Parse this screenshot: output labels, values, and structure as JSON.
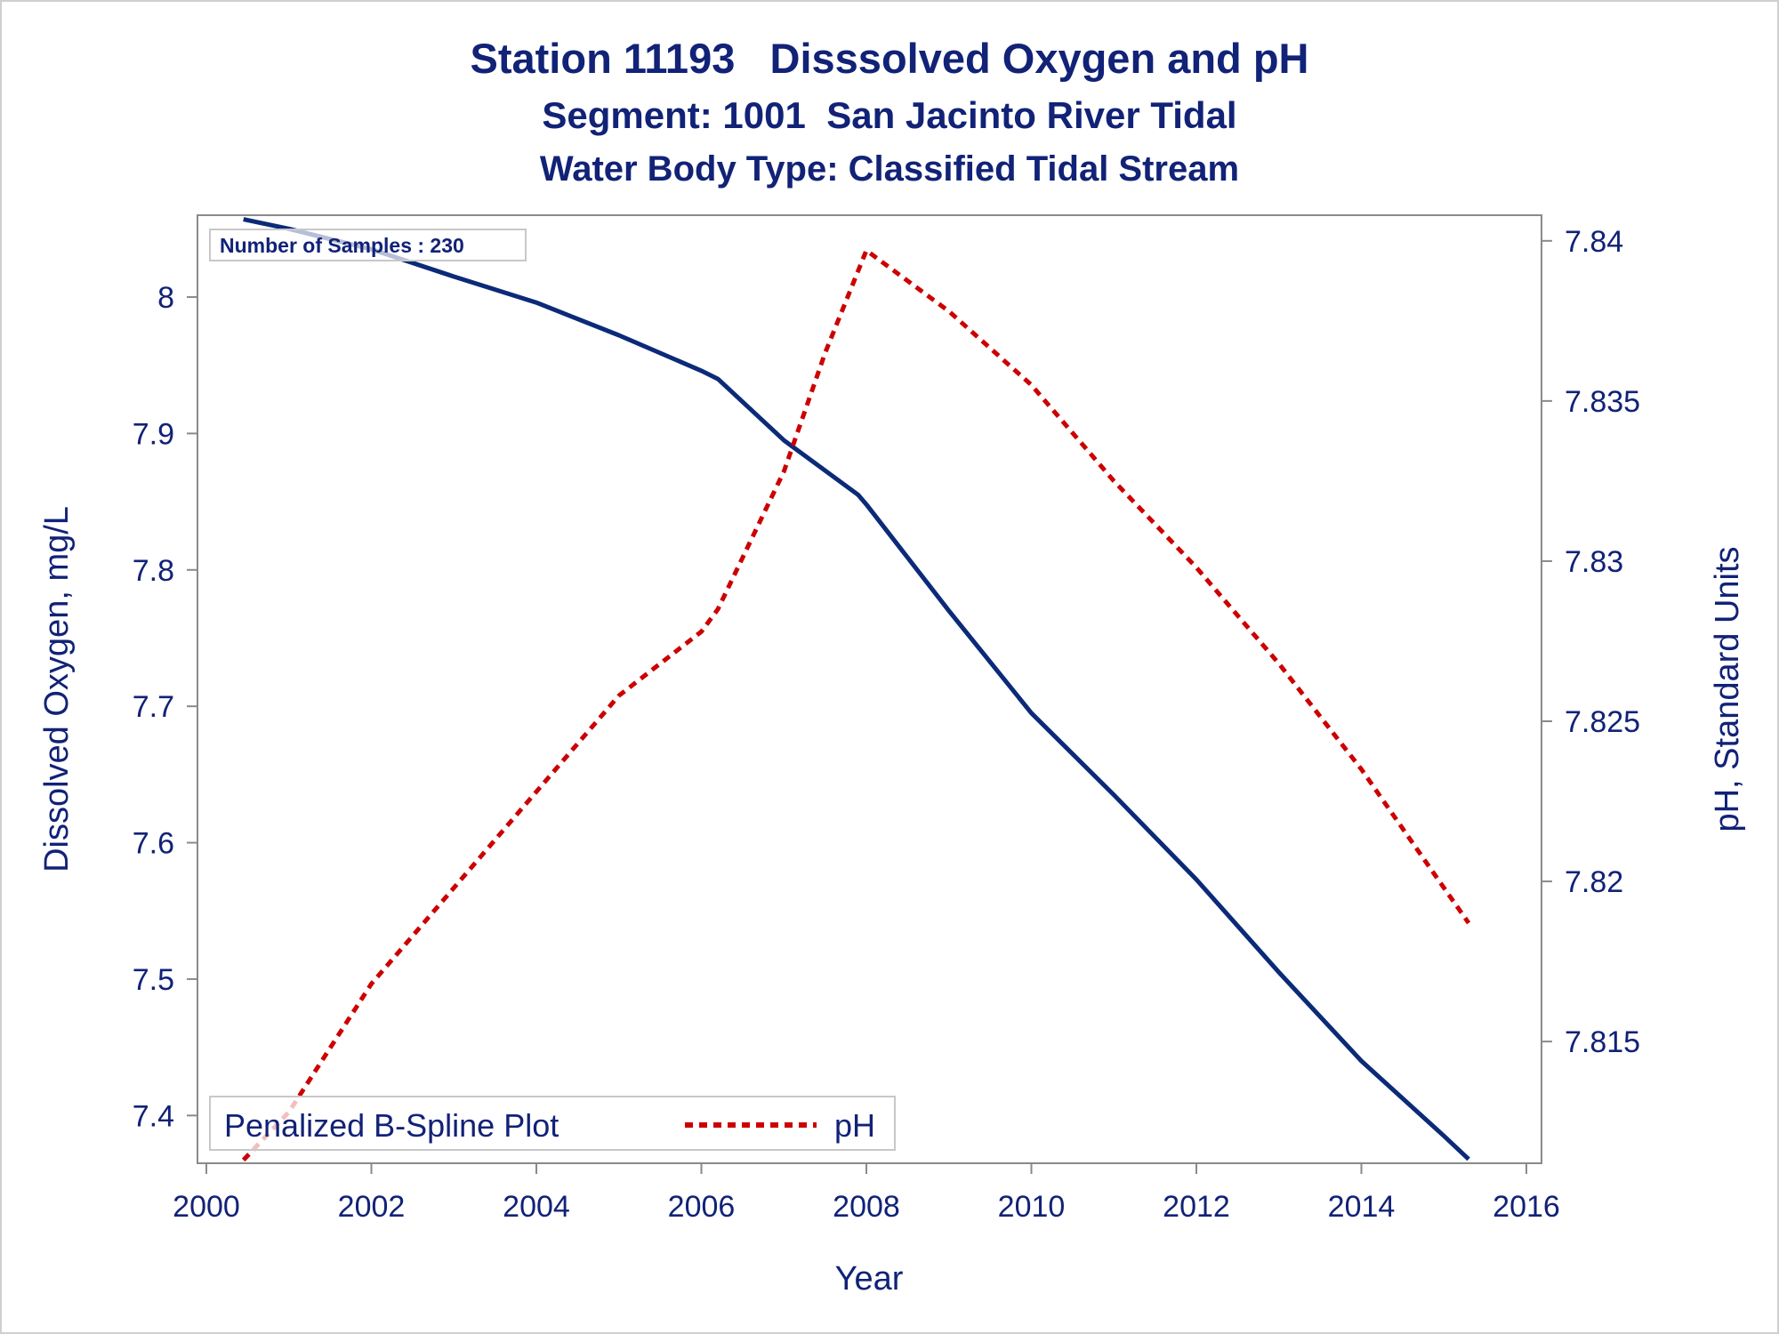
{
  "titles": {
    "line1": "Station 11193   Disssolved Oxygen and pH",
    "line2": "Segment: 1001  San Jacinto River Tidal",
    "line3": "Water Body Type: Classified Tidal Stream"
  },
  "inset_label": "Number of Samples : 230",
  "legend": {
    "title": "Penalized B-Spline Plot",
    "entry": "pH"
  },
  "colors": {
    "axis_text": "#112277",
    "do_line": "#0b2a78",
    "ph_line": "#cc0000"
  },
  "chart_data": {
    "type": "line",
    "xlabel": "Year",
    "ylabel": "Dissolved Oxygen, mg/L",
    "y2label": "pH, Standard Units",
    "xlim": [
      2000,
      2016
    ],
    "ylim": [
      7.365,
      8.06
    ],
    "y2lim": [
      7.8112,
      7.8408
    ],
    "xticks": [
      "2000",
      "2002",
      "2004",
      "2006",
      "2008",
      "2010",
      "2012",
      "2014",
      "2016"
    ],
    "yticks": [
      "7.4",
      "7.5",
      "7.6",
      "7.7",
      "7.8",
      "7.9",
      "8"
    ],
    "y2ticks": [
      "7.815",
      "7.82",
      "7.825",
      "7.83",
      "7.835",
      "7.84"
    ],
    "legend_position": "bottom-left",
    "series": [
      {
        "axis": "left",
        "style": "solid",
        "x": [
          2000.45,
          2001,
          2002,
          2003,
          2004,
          2005,
          2006,
          2006.2,
          2007,
          2007.9,
          2008,
          2009,
          2010,
          2011,
          2012,
          2013,
          2014,
          2015,
          2015.3
        ],
        "y": [
          8.057,
          8.05,
          8.035,
          8.015,
          7.996,
          7.972,
          7.946,
          7.94,
          7.895,
          7.855,
          7.848,
          7.77,
          7.695,
          7.635,
          7.573,
          7.505,
          7.44,
          7.385,
          7.368
        ]
      },
      {
        "name": "pH",
        "axis": "right",
        "style": "dashed",
        "x": [
          2000.45,
          2001,
          2002,
          2003,
          2004,
          2005,
          2006,
          2006.2,
          2007,
          2007.5,
          2008,
          2009,
          2010,
          2011,
          2012,
          2013,
          2014,
          2015,
          2015.3
        ],
        "y": [
          7.8113,
          7.8128,
          7.8168,
          7.8198,
          7.8228,
          7.8258,
          7.8278,
          7.8285,
          7.8328,
          7.8365,
          7.8397,
          7.8378,
          7.8355,
          7.8325,
          7.8298,
          7.8268,
          7.8235,
          7.8198,
          7.8187
        ]
      }
    ]
  }
}
